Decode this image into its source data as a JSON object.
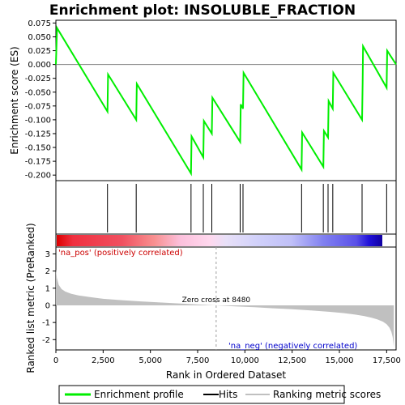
{
  "chart_data": {
    "type": "line",
    "title": "Enrichment plot: INSOLUBLE_FRACTION",
    "es_panel": {
      "ylabel": "Enrichment score (ES)",
      "ylim": [
        -0.21,
        0.08
      ],
      "yticks": [
        "0.075",
        "0.050",
        "0.025",
        "0.000",
        "-0.025",
        "-0.050",
        "-0.075",
        "-0.100",
        "-0.125",
        "-0.150",
        "-0.175",
        "-0.200"
      ],
      "ytick_values": [
        0.075,
        0.05,
        0.025,
        0.0,
        -0.025,
        -0.05,
        -0.075,
        -0.1,
        -0.125,
        -0.15,
        -0.175,
        -0.2
      ],
      "series": [
        {
          "name": "Enrichment profile",
          "color": "#00ee00",
          "x": [
            0,
            60,
            2730,
            2760,
            4250,
            4280,
            7150,
            7180,
            7800,
            7830,
            8250,
            8280,
            9750,
            9780,
            9900,
            9930,
            13000,
            13030,
            14150,
            14180,
            14400,
            14430,
            14650,
            14680,
            16200,
            16230,
            16250,
            17500,
            17530,
            18000
          ],
          "y": [
            0.0,
            0.066,
            -0.085,
            -0.018,
            -0.1,
            -0.035,
            -0.197,
            -0.13,
            -0.168,
            -0.102,
            -0.125,
            -0.06,
            -0.14,
            -0.072,
            -0.08,
            -0.015,
            -0.19,
            -0.123,
            -0.185,
            -0.12,
            -0.132,
            -0.066,
            -0.08,
            -0.015,
            -0.1,
            -0.033,
            0.033,
            -0.042,
            0.025,
            0.0
          ]
        }
      ]
    },
    "hits": {
      "name": "Hits",
      "color": "#000000",
      "x": [
        2730,
        4250,
        7150,
        7800,
        8250,
        9750,
        9900,
        13000,
        14150,
        14400,
        14650,
        16200,
        17500
      ]
    },
    "rank_panel": {
      "ylabel": "Ranked list metric (PreRanked)",
      "xlabel": "Rank in Ordered Dataset",
      "series_name": "Ranking metric scores",
      "color": "#c0c0c0",
      "ylim": [
        -2.6,
        3.4
      ],
      "yticks": [
        "3",
        "2",
        "1",
        "0",
        "-1",
        "-2"
      ],
      "ytick_values": [
        3,
        2,
        1,
        0,
        -1,
        -2
      ],
      "xlim": [
        0,
        18000
      ],
      "xticks": [
        "0",
        "2,500",
        "5,000",
        "7,500",
        "10,000",
        "12,500",
        "15,000",
        "17,500"
      ],
      "xtick_values": [
        0,
        2500,
        5000,
        7500,
        10000,
        12500,
        15000,
        17500
      ],
      "profile_x": [
        0,
        50,
        150,
        300,
        500,
        800,
        1200,
        1800,
        2500,
        3500,
        4500,
        5500,
        6500,
        7500,
        8480,
        9500,
        10500,
        11500,
        12500,
        13500,
        14500,
        15200,
        15800,
        16300,
        16700,
        17000,
        17300,
        17500,
        17650,
        17750,
        17820,
        17860,
        17880
      ],
      "profile_y": [
        2.1,
        1.6,
        1.2,
        0.95,
        0.8,
        0.68,
        0.58,
        0.48,
        0.38,
        0.3,
        0.23,
        0.17,
        0.11,
        0.05,
        0.0,
        -0.06,
        -0.11,
        -0.17,
        -0.23,
        -0.3,
        -0.38,
        -0.45,
        -0.53,
        -0.62,
        -0.72,
        -0.82,
        -0.95,
        -1.1,
        -1.3,
        -1.55,
        -1.85,
        -2.2,
        -2.45
      ],
      "zero_cross_label": "Zero cross at 8480",
      "zero_cross_x": 8480,
      "pos_label": "'na_pos' (positively correlated)",
      "neg_label": "'na_neg' (negatively correlated)"
    },
    "legend": {
      "placement": "bottom",
      "entries": [
        "Enrichment profile",
        "Hits",
        "Ranking metric scores"
      ]
    }
  }
}
